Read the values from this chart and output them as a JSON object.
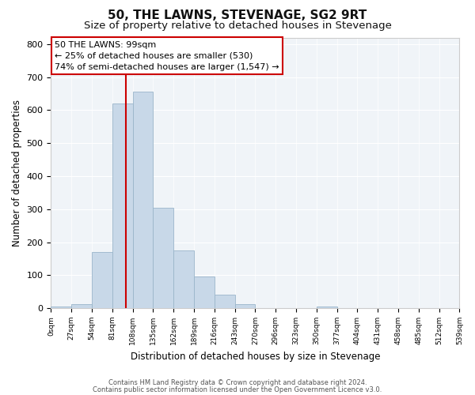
{
  "title": "50, THE LAWNS, STEVENAGE, SG2 9RT",
  "subtitle": "Size of property relative to detached houses in Stevenage",
  "xlabel": "Distribution of detached houses by size in Stevenage",
  "ylabel": "Number of detached properties",
  "bar_edges": [
    0,
    27,
    54,
    81,
    108,
    135,
    162,
    189,
    216,
    243,
    270,
    297,
    324,
    351,
    378,
    405,
    432,
    459,
    486,
    513,
    540
  ],
  "bar_heights": [
    5,
    12,
    170,
    620,
    655,
    305,
    175,
    97,
    40,
    12,
    0,
    0,
    0,
    5,
    0,
    0,
    0,
    0,
    0,
    0
  ],
  "bar_color": "#c8d8e8",
  "bar_edgecolor": "#9ab5ca",
  "marker_x": 99,
  "marker_color": "#cc0000",
  "ylim": [
    0,
    820
  ],
  "xlim": [
    0,
    540
  ],
  "annotation_line1": "50 THE LAWNS: 99sqm",
  "annotation_line2": "← 25% of detached houses are smaller (530)",
  "annotation_line3": "74% of semi-detached houses are larger (1,547) →",
  "annotation_box_edgecolor": "#cc0000",
  "annotation_box_facecolor": "#ffffff",
  "footer_line1": "Contains HM Land Registry data © Crown copyright and database right 2024.",
  "footer_line2": "Contains public sector information licensed under the Open Government Licence v3.0.",
  "title_fontsize": 11,
  "subtitle_fontsize": 9.5,
  "tick_labels": [
    "0sqm",
    "27sqm",
    "54sqm",
    "81sqm",
    "108sqm",
    "135sqm",
    "162sqm",
    "189sqm",
    "216sqm",
    "243sqm",
    "270sqm",
    "296sqm",
    "323sqm",
    "350sqm",
    "377sqm",
    "404sqm",
    "431sqm",
    "458sqm",
    "485sqm",
    "512sqm",
    "539sqm"
  ],
  "background_color": "#ffffff",
  "plot_bg_color": "#f0f4f8"
}
